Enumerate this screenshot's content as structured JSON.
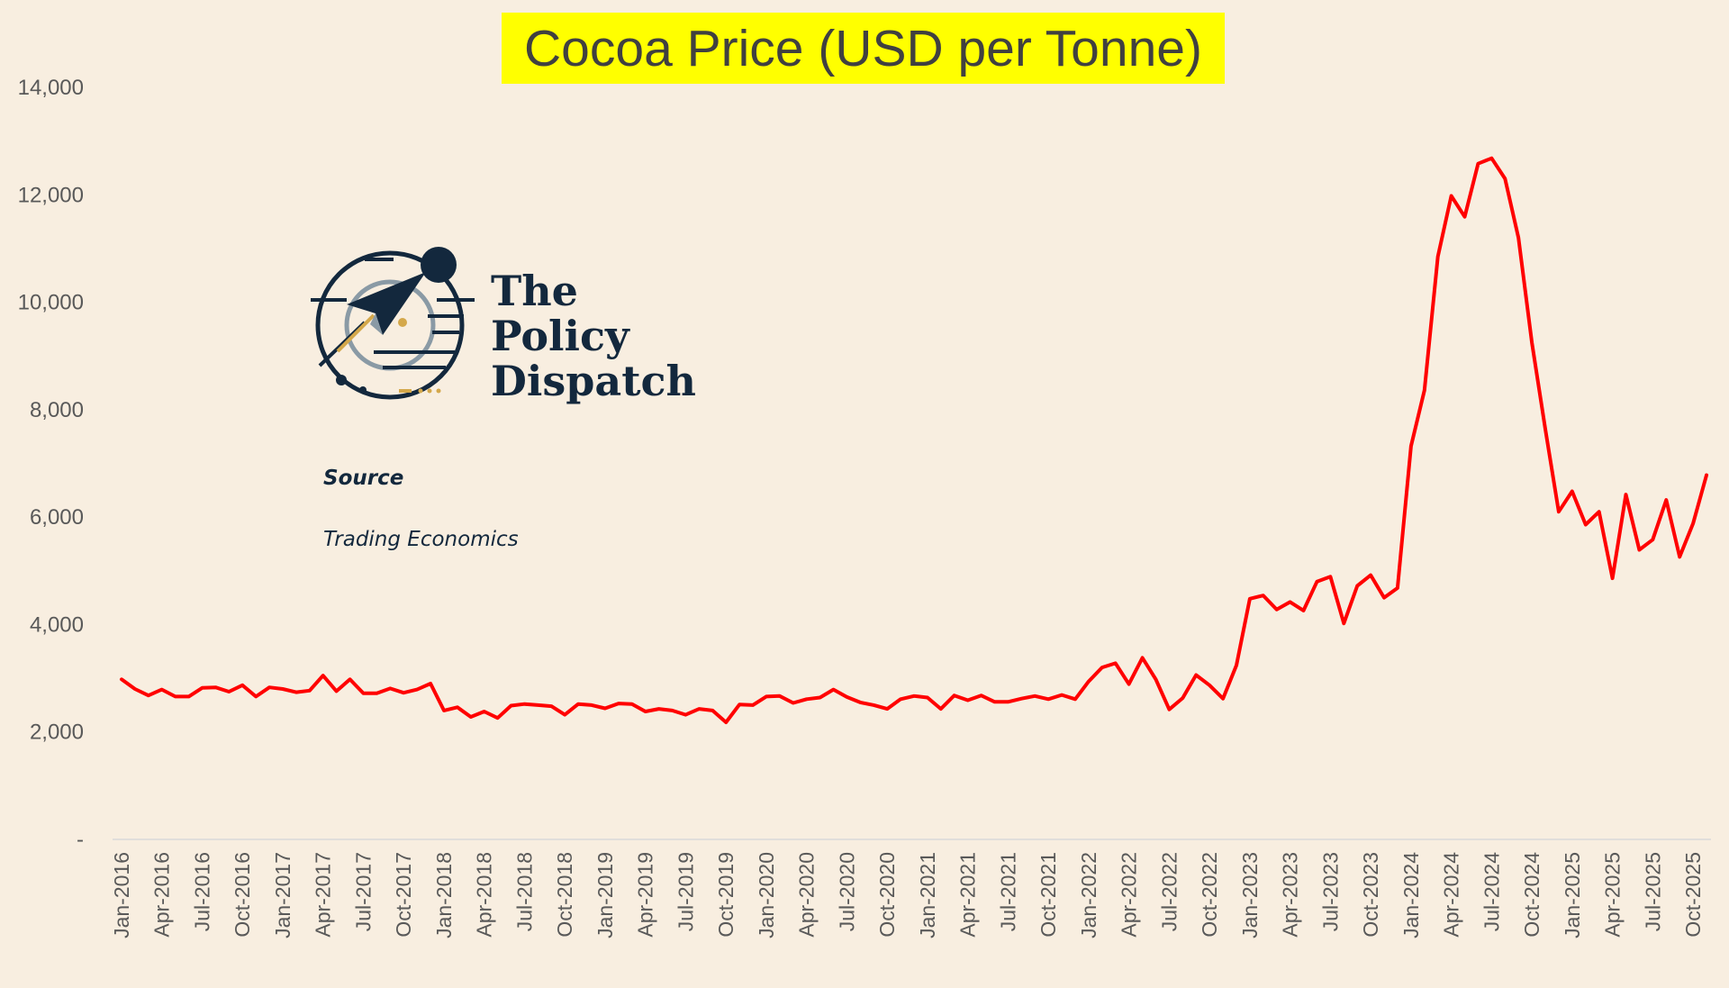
{
  "chart_data": {
    "type": "line",
    "title": "Cocoa Price (USD per Tonne)",
    "xlabel": "",
    "ylabel": "",
    "ylim": [
      0,
      14000
    ],
    "y_ticks": [
      0,
      2000,
      4000,
      6000,
      8000,
      10000,
      12000,
      14000
    ],
    "y_tick_labels": [
      "-",
      "2,000",
      "4,000",
      "6,000",
      "8,000",
      "10,000",
      "12,000",
      "14,000"
    ],
    "x_tick_labels": [
      "Jan-2016",
      "Apr-2016",
      "Jul-2016",
      "Oct-2016",
      "Jan-2017",
      "Apr-2017",
      "Jul-2017",
      "Oct-2017",
      "Jan-2018",
      "Apr-2018",
      "Jul-2018",
      "Oct-2018",
      "Jan-2019",
      "Apr-2019",
      "Jul-2019",
      "Oct-2019",
      "Jan-2020",
      "Apr-2020",
      "Jul-2020",
      "Oct-2020",
      "Jan-2021",
      "Apr-2021",
      "Jul-2021",
      "Oct-2021",
      "Jan-2022",
      "Apr-2022",
      "Jul-2022",
      "Oct-2022",
      "Jan-2023",
      "Apr-2023",
      "Jul-2023",
      "Oct-2023",
      "Jan-2024",
      "Apr-2024",
      "Jul-2024",
      "Oct-2024",
      "Jan-2025",
      "Apr-2025",
      "Jul-2025",
      "Oct-2025"
    ],
    "line_color": "#ff0000",
    "grid": false,
    "series": [
      {
        "values": [
          2980,
          2800,
          2680,
          2790,
          2660,
          2660,
          2820,
          2830,
          2750,
          2870,
          2660,
          2830,
          2800,
          2740,
          2770,
          3050,
          2760,
          2980,
          2720,
          2720,
          2810,
          2730,
          2790,
          2900,
          2400,
          2460,
          2280,
          2380,
          2260,
          2490,
          2520,
          2500,
          2480,
          2320,
          2520,
          2500,
          2440,
          2530,
          2520,
          2380,
          2430,
          2400,
          2320,
          2430,
          2400,
          2180,
          2510,
          2500,
          2660,
          2670,
          2540,
          2610,
          2640,
          2790,
          2650,
          2550,
          2500,
          2430,
          2610,
          2670,
          2640,
          2430,
          2680,
          2590,
          2680,
          2560,
          2560,
          2620,
          2670,
          2610,
          2690,
          2610,
          2940,
          3200,
          3280,
          2890,
          3380,
          2980,
          2420,
          2630,
          3060,
          2870,
          2620,
          3240,
          4480,
          4540,
          4280,
          4420,
          4260,
          4800,
          4890,
          4020,
          4720,
          4920,
          4500,
          4680,
          7320,
          8360,
          10850,
          11980,
          11590,
          12580,
          12680,
          12300,
          11200,
          9250,
          7640,
          6100,
          6480,
          5860,
          6100,
          4860,
          6420,
          5390,
          5580,
          6320,
          5260,
          5880,
          6780
        ]
      }
    ]
  },
  "logo": {
    "line1": "The",
    "line2": "Policy",
    "line3": "Dispatch"
  },
  "source": {
    "label": "Source",
    "value": "Trading Economics"
  }
}
